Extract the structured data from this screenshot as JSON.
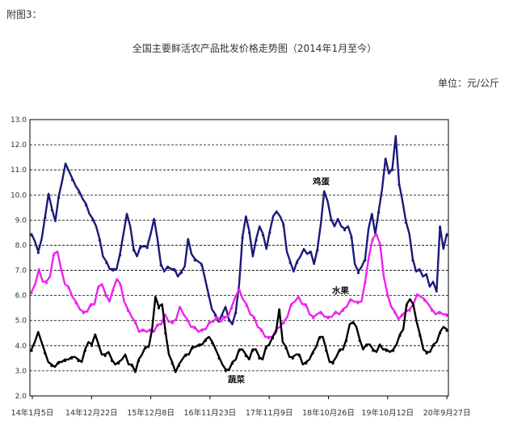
{
  "header": {
    "note": "附图3：",
    "unit": "单位：元/公斤"
  },
  "chart_data": {
    "type": "line",
    "title": "全国主要鲜活农产品批发价格走势图（2014年1月至今）",
    "ylim": [
      2.0,
      13.0
    ],
    "yticks": [
      "2.0",
      "3.0",
      "4.0",
      "5.0",
      "6.0",
      "7.0",
      "8.0",
      "9.0",
      "10.0",
      "11.0",
      "12.0",
      "13.0"
    ],
    "xticks": [
      "14年1月5日",
      "14年12月22日",
      "15年12月8日",
      "16年11月23日",
      "17年11月9日",
      "18年10月26日",
      "19年10月12日",
      "20年9月27日"
    ],
    "grid": true,
    "colors": {
      "egg": "#1a1a7a",
      "fruit": "#ee22ee",
      "veg": "#000000"
    },
    "series": [
      {
        "key": "egg",
        "name": "鸡蛋",
        "values": [
          8.4,
          8.2,
          7.7,
          8.3,
          9.1,
          10.1,
          9.4,
          9.0,
          9.9,
          10.6,
          11.2,
          11.0,
          10.6,
          10.4,
          10.1,
          9.9,
          9.6,
          9.3,
          9.0,
          8.8,
          8.2,
          7.6,
          7.3,
          7.1,
          7.0,
          7.1,
          7.6,
          8.5,
          9.2,
          8.8,
          7.8,
          7.6,
          7.9,
          8.0,
          7.9,
          8.5,
          9.0,
          8.3,
          7.2,
          7.0,
          7.1,
          7.1,
          7.0,
          6.8,
          6.9,
          7.2,
          8.2,
          7.7,
          7.4,
          7.4,
          7.2,
          6.7,
          6.0,
          5.5,
          5.2,
          5.0,
          5.2,
          5.6,
          5.0,
          4.9,
          5.3,
          6.5,
          8.3,
          9.2,
          8.5,
          7.6,
          8.2,
          8.8,
          8.4,
          7.9,
          8.5,
          9.2,
          9.3,
          9.2,
          8.8,
          7.8,
          7.3,
          7.0,
          7.3,
          7.6,
          7.8,
          7.7,
          7.7,
          7.3,
          7.8,
          8.9,
          10.1,
          9.8,
          9.0,
          8.8,
          9.0,
          8.8,
          8.6,
          8.8,
          8.3,
          7.3,
          6.9,
          7.2,
          7.4,
          8.7,
          9.2,
          8.5,
          9.3,
          10.3,
          11.4,
          10.9,
          11.0,
          12.4,
          10.4,
          9.8,
          8.9,
          8.5,
          7.4,
          7.0,
          7.0,
          6.8,
          6.8,
          6.4,
          6.5,
          6.2,
          8.7,
          7.9,
          8.4
        ]
      },
      {
        "key": "fruit",
        "name": "水果",
        "values": [
          6.1,
          6.5,
          7.0,
          6.6,
          6.5,
          6.8,
          7.6,
          7.8,
          7.0,
          6.5,
          6.3,
          6.0,
          5.7,
          5.5,
          5.3,
          5.4,
          5.6,
          5.7,
          6.3,
          6.5,
          6.0,
          5.8,
          6.2,
          6.7,
          6.4,
          5.8,
          5.4,
          5.2,
          4.9,
          4.6,
          4.6,
          4.6,
          4.6,
          4.6,
          4.8,
          4.9,
          5.2,
          5.0,
          4.9,
          5.1,
          5.5,
          5.3,
          5.0,
          4.8,
          4.7,
          4.6,
          4.6,
          4.7,
          4.9,
          5.0,
          5.1,
          5.0,
          5.1,
          5.2,
          5.5,
          6.0,
          6.2,
          5.9,
          5.6,
          5.3,
          5.1,
          4.8,
          4.6,
          4.4,
          4.3,
          4.4,
          4.6,
          4.8,
          4.9,
          5.2,
          5.6,
          5.8,
          5.9,
          5.7,
          5.6,
          5.3,
          5.1,
          5.3,
          5.3,
          5.2,
          5.1,
          5.2,
          5.3,
          5.3,
          5.4,
          5.6,
          5.8,
          5.8,
          5.7,
          5.8,
          6.5,
          7.6,
          8.2,
          8.5,
          8.0,
          6.8,
          6.0,
          5.6,
          5.3,
          5.1,
          5.2,
          5.4,
          5.4,
          5.7,
          6.0,
          6.0,
          5.8,
          5.7,
          5.4,
          5.3,
          5.3,
          5.3,
          5.2
        ]
      },
      {
        "key": "veg",
        "name": "蔬菜",
        "values": [
          3.8,
          4.2,
          4.5,
          4.2,
          3.7,
          3.4,
          3.2,
          3.2,
          3.3,
          3.4,
          3.4,
          3.5,
          3.5,
          3.6,
          3.4,
          3.4,
          3.8,
          4.2,
          4.0,
          4.5,
          4.0,
          3.7,
          3.6,
          3.8,
          3.4,
          3.3,
          3.3,
          3.5,
          3.6,
          3.3,
          3.2,
          3.0,
          3.4,
          3.7,
          3.9,
          4.0,
          4.6,
          6.0,
          5.5,
          5.7,
          4.5,
          3.7,
          3.3,
          3.0,
          3.2,
          3.5,
          3.6,
          3.7,
          3.9,
          4.0,
          4.0,
          4.1,
          4.2,
          4.4,
          4.1,
          3.9,
          3.5,
          3.3,
          3.0,
          3.1,
          3.3,
          3.5,
          3.8,
          3.9,
          3.6,
          3.5,
          3.8,
          3.9,
          3.5,
          3.5,
          3.9,
          4.1,
          4.3,
          4.6,
          5.4,
          4.2,
          3.9,
          3.6,
          3.5,
          3.7,
          3.6,
          3.3,
          3.3,
          3.5,
          3.7,
          4.0,
          4.3,
          4.4,
          3.8,
          3.4,
          3.3,
          3.6,
          3.8,
          3.9,
          4.2,
          4.9,
          4.9,
          4.8,
          4.2,
          3.9,
          4.0,
          4.1,
          3.8,
          3.8,
          4.0,
          3.9,
          3.8,
          3.8,
          3.8,
          4.1,
          4.4,
          4.7,
          5.6,
          5.9,
          5.6,
          5.0,
          4.4,
          3.9,
          3.7,
          3.8,
          4.0,
          4.2,
          4.5,
          4.8,
          4.6
        ]
      }
    ],
    "labels": {
      "egg": "鸡蛋",
      "fruit": "水果",
      "veg": "蔬菜"
    }
  }
}
